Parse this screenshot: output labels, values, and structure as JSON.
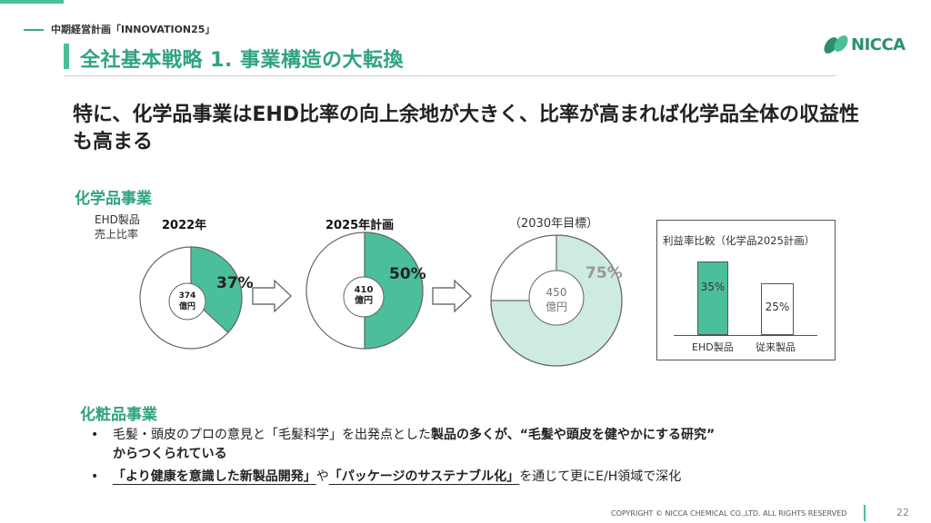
{
  "header": {
    "breadcrumb": "中期経営計画「INNOVATION25」",
    "title": "全社基本戦略 1. 事業構造の大転換",
    "logo_text": "NICCA"
  },
  "headline": "特に、化学品事業はEHD比率の向上余地が大きく、比率が高まれば化学品全体の収益性も高まる",
  "chemical": {
    "section_title": "化学品事業",
    "ratio_label_line1": "EHD製品",
    "ratio_label_line2": "売上比率",
    "pies": [
      {
        "year": "2022年",
        "sales_line1": "374",
        "sales_line2": "億円",
        "pct_label": "37%",
        "fraction": 0.37
      },
      {
        "year": "2025年計画",
        "sales_line1": "410",
        "sales_line2": "億円",
        "pct_label": "50%",
        "fraction": 0.5
      },
      {
        "year": "（2030年目標）",
        "sales_line1": "450",
        "sales_line2": "億円",
        "pct_label": "75%",
        "fraction": 0.75
      }
    ],
    "margin_box": {
      "title": "利益率比較（化学品2025計画）",
      "bars": [
        {
          "label": "EHD製品",
          "value_label": "35%",
          "value": 35
        },
        {
          "label": "従来製品",
          "value_label": "25%",
          "value": 25
        }
      ]
    }
  },
  "cosmetics": {
    "section_title": "化粧品事業",
    "bullet1_plain": "毛髪・頭皮のプロの意見と「毛髪科学」を出発点とした",
    "bullet1_bold_a": "製品の多くが、“毛髪や頭皮を健やかにする研究”",
    "bullet1_bold_b": "からつくられている",
    "bullet2_bold_a": "「より健康を意識した新製品開発」",
    "bullet2_mid": "や",
    "bullet2_bold_b": "「パッケージのサステナブル化」",
    "bullet2_tail": "を通じて更にE/H領域で深化"
  },
  "footer": {
    "copyright": "COPYRIGHT © NICCA CHEMICAL CO.,LTD. ALL RIGHTS RESERVED",
    "page": "22"
  },
  "colors": {
    "accent": "#4bbf9b",
    "title": "#2fa382",
    "pie_fill": "#4bbf9b",
    "pie_light": "#cdebe2"
  }
}
